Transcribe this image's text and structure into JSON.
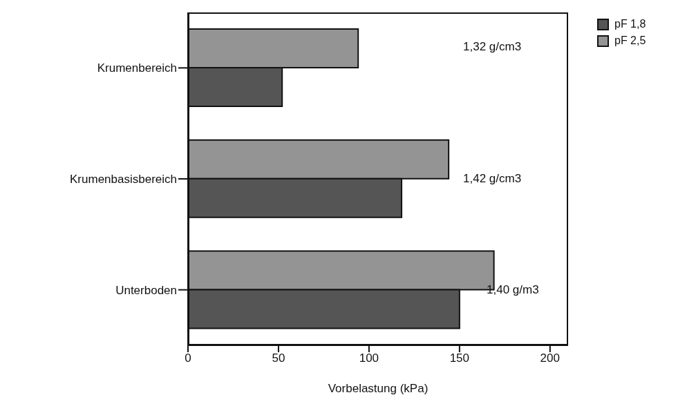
{
  "chart_data": {
    "type": "bar",
    "orientation": "horizontal",
    "xlabel": "Vorbelastung (kPa)",
    "categories": [
      "Krumenbereich",
      "Krumenbasisbereich",
      "Unterboden"
    ],
    "series": [
      {
        "name": "pF 1,8",
        "color": "#555555",
        "values": [
          52,
          118,
          150
        ]
      },
      {
        "name": "pF 2,5",
        "color": "#949494",
        "values": [
          94,
          144,
          169
        ]
      }
    ],
    "xlim": [
      0,
      210
    ],
    "xticks": [
      0,
      50,
      100,
      150,
      200
    ],
    "legend": "top right",
    "annotations": [
      "1,32 g/cm3",
      "1,42 g/cm3",
      "1,40 g/m3"
    ]
  }
}
